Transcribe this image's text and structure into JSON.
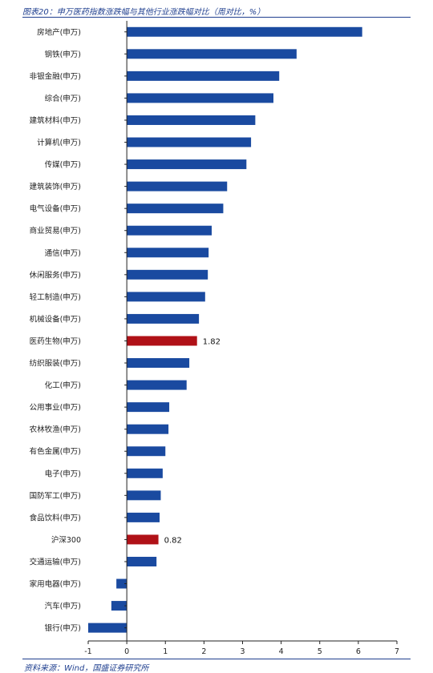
{
  "header": {
    "title": "图表20：申万医药指数涨跌幅与其他行业涨跌幅对比（周对比，%）"
  },
  "footer": {
    "source": "资料来源：Wind，国盛证券研究所"
  },
  "colors": {
    "bar": "#1a4aa0",
    "highlight": "#b01117",
    "axis": "#222222",
    "title": "#1f3f8f"
  },
  "chart_data": {
    "type": "bar",
    "orientation": "horizontal",
    "categories": [
      "房地产(申万)",
      "钢铁(申万)",
      "非银金融(申万)",
      "综合(申万)",
      "建筑材料(申万)",
      "计算机(申万)",
      "传媒(申万)",
      "建筑装饰(申万)",
      "电气设备(申万)",
      "商业贸易(申万)",
      "通信(申万)",
      "休闲服务(申万)",
      "轻工制造(申万)",
      "机械设备(申万)",
      "医药生物(申万)",
      "纺织服装(申万)",
      "化工(申万)",
      "公用事业(申万)",
      "农林牧渔(申万)",
      "有色金属(申万)",
      "电子(申万)",
      "国防军工(申万)",
      "食品饮料(申万)",
      "沪深300",
      "交通运输(申万)",
      "家用电器(申万)",
      "汽车(申万)",
      "银行(申万)"
    ],
    "values": [
      6.1,
      4.4,
      3.95,
      3.8,
      3.33,
      3.22,
      3.1,
      2.6,
      2.5,
      2.2,
      2.12,
      2.1,
      2.03,
      1.87,
      1.82,
      1.62,
      1.55,
      1.1,
      1.08,
      1.0,
      0.93,
      0.88,
      0.85,
      0.82,
      0.77,
      -0.27,
      -0.4,
      -1.0
    ],
    "highlighted": [
      "医药生物(申万)",
      "沪深300"
    ],
    "data_labels": [
      {
        "category": "医药生物(申万)",
        "text": "1.82"
      },
      {
        "category": "沪深300",
        "text": "0.82"
      }
    ],
    "xlim": [
      -1,
      7
    ],
    "xticks": [
      "-1",
      "0",
      "1",
      "2",
      "3",
      "4",
      "5",
      "6",
      "7"
    ],
    "xlabel": "",
    "ylabel": "",
    "grid": false
  }
}
